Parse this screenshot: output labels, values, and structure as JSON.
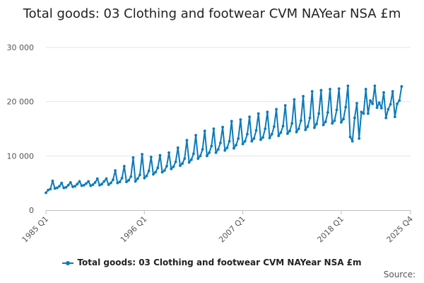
{
  "colors": {
    "series": "#0c7bba",
    "grid": "#e6e6e6",
    "axis": "#c0c0c0"
  },
  "title": "Total goods: 03 Clothing and footwear CVM NAYear NSA £m",
  "source": "Source:",
  "chart_data": {
    "type": "line",
    "title": "Total goods: 03 Clothing and footwear CVM NAYear NSA £m",
    "xlabel": "",
    "ylabel": "",
    "ylim": [
      0,
      30000
    ],
    "yticks": [
      0,
      10000,
      20000,
      30000
    ],
    "ytick_labels": [
      "0",
      "10 000",
      "20 000",
      "30 000"
    ],
    "x_range": [
      "1985 Q1",
      "2025 Q4"
    ],
    "xticks": [
      "1985 Q1",
      "1996 Q1",
      "2007 Q1",
      "2018 Q1",
      "2025 Q4"
    ],
    "grid": true,
    "legend": "bottom",
    "series": [
      {
        "name": "Total goods: 03 Clothing and footwear CVM NAYear NSA £m",
        "start": "1985 Q1",
        "values": [
          3200,
          3700,
          3900,
          5400,
          4000,
          4100,
          4400,
          5000,
          4100,
          4200,
          4600,
          5100,
          4300,
          4400,
          4800,
          5300,
          4500,
          4600,
          4900,
          5300,
          4500,
          4700,
          5100,
          5800,
          4600,
          4800,
          5300,
          5800,
          4700,
          5000,
          5600,
          7300,
          5000,
          5200,
          5900,
          8100,
          5200,
          5500,
          6200,
          9700,
          5300,
          5800,
          6500,
          10300,
          5900,
          6300,
          7200,
          9800,
          6600,
          7000,
          7800,
          10100,
          7000,
          7300,
          8100,
          10600,
          7600,
          8000,
          8900,
          11500,
          8200,
          8600,
          9500,
          12900,
          8800,
          9300,
          10400,
          13800,
          9500,
          10000,
          11200,
          14600,
          10000,
          10600,
          11800,
          15000,
          10600,
          11200,
          12400,
          15300,
          11000,
          11500,
          12700,
          16400,
          11400,
          12000,
          13200,
          16700,
          12200,
          12700,
          14000,
          17200,
          12700,
          13200,
          14700,
          17800,
          13000,
          13400,
          15000,
          18100,
          13300,
          14000,
          15400,
          18600,
          13700,
          14300,
          15500,
          19300,
          14100,
          14600,
          16000,
          20400,
          14400,
          15000,
          16500,
          21000,
          14800,
          15400,
          17000,
          21900,
          15200,
          15900,
          17800,
          22100,
          15700,
          16300,
          18000,
          22300,
          16000,
          16500,
          18500,
          22400,
          16200,
          16800,
          19000,
          22900,
          13500,
          12700,
          17000,
          19700,
          13200,
          18100,
          17800,
          22300,
          17800,
          20200,
          19600,
          22900,
          18900,
          19800,
          18800,
          21700,
          17000,
          18600,
          19500,
          21900,
          17200,
          19600,
          20200,
          22800
        ]
      }
    ]
  }
}
